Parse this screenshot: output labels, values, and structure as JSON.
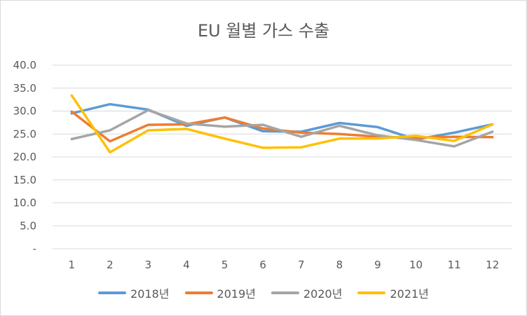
{
  "chart_data": {
    "type": "line",
    "title": "EU 월별 가스 수출",
    "categories": [
      "1",
      "2",
      "3",
      "4",
      "5",
      "6",
      "7",
      "8",
      "9",
      "10",
      "11",
      "12"
    ],
    "ylim": [
      0,
      40
    ],
    "ytick_labels": [
      "-",
      "5.0",
      "10.0",
      "15.0",
      "20.0",
      "25.0",
      "30.0",
      "35.0",
      "40.0"
    ],
    "grid": true,
    "legend_position": "bottom",
    "series": [
      {
        "name": "2018년",
        "color": "#5b9bd5",
        "values": [
          29.5,
          31.5,
          30.3,
          26.8,
          28.6,
          25.6,
          25.5,
          27.4,
          26.5,
          23.8,
          25.3,
          27.1
        ]
      },
      {
        "name": "2019년",
        "color": "#ed7d31",
        "values": [
          29.9,
          23.4,
          27.0,
          27.1,
          28.6,
          26.2,
          25.3,
          25.0,
          24.4,
          24.2,
          24.4,
          24.3
        ]
      },
      {
        "name": "2020년",
        "color": "#a5a5a5",
        "values": [
          23.9,
          25.8,
          30.2,
          27.3,
          26.6,
          27.0,
          24.4,
          26.8,
          24.7,
          23.7,
          22.3,
          25.5
        ]
      },
      {
        "name": "2021년",
        "color": "#ffc000",
        "values": [
          33.4,
          21.0,
          25.8,
          26.1,
          24.0,
          22.0,
          22.1,
          24.0,
          24.0,
          24.6,
          23.5,
          27.1
        ]
      }
    ]
  }
}
